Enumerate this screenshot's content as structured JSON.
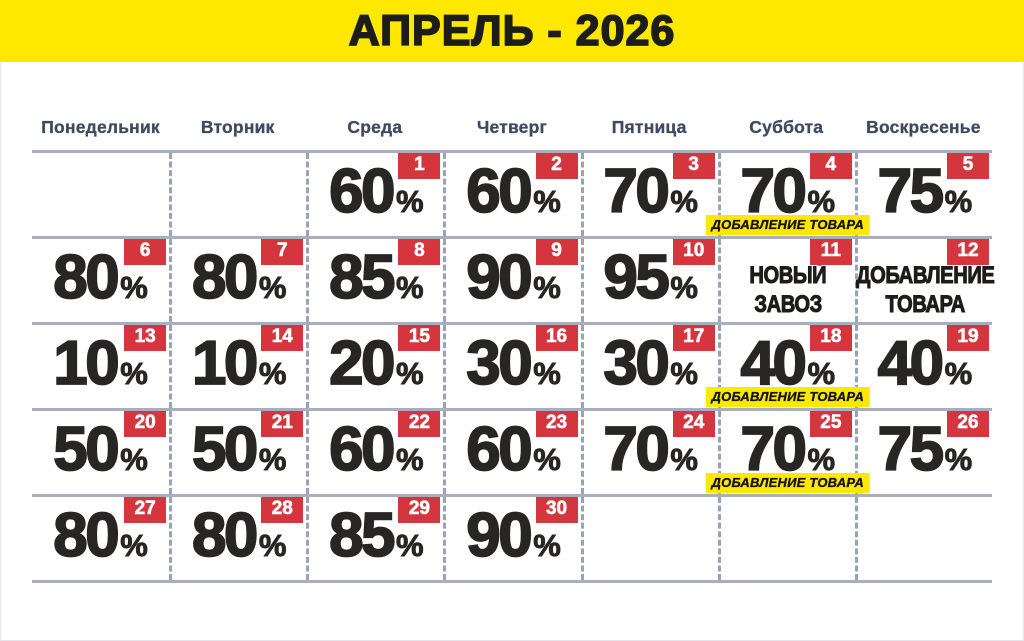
{
  "title": "АПРЕЛЬ - 2026",
  "percent_sign": "%",
  "weekdays": [
    "Понедельник",
    "Вторник",
    "Среда",
    "Четверг",
    "Пятница",
    "Суббота",
    "Воскресенье"
  ],
  "colors": {
    "banner_yellow": "#ffe800",
    "badge_red": "#d5353d",
    "weekday_text": "#3e4a64",
    "grid_solid_line": "#a8aebf",
    "grid_dashed_line": "#9aa2b6",
    "big_text": "#282624",
    "note_background": "#ffe800"
  },
  "calendar": {
    "rows": [
      [
        {},
        {},
        {
          "day": "1",
          "percent": "60"
        },
        {
          "day": "2",
          "percent": "60"
        },
        {
          "day": "3",
          "percent": "70"
        },
        {
          "day": "4",
          "percent": "70",
          "note": "ДОБАВЛЕНИЕ ТОВАРА"
        },
        {
          "day": "5",
          "percent": "75"
        }
      ],
      [
        {
          "day": "6",
          "percent": "80"
        },
        {
          "day": "7",
          "percent": "80"
        },
        {
          "day": "8",
          "percent": "85"
        },
        {
          "day": "9",
          "percent": "90"
        },
        {
          "day": "10",
          "percent": "95"
        },
        {
          "day": "11",
          "lines": [
            "НОВЫЙ",
            "ЗАВОЗ"
          ]
        },
        {
          "day": "12",
          "lines": [
            "ДОБАВЛЕНИЕ",
            "ТОВАРА"
          ]
        }
      ],
      [
        {
          "day": "13",
          "percent": "10"
        },
        {
          "day": "14",
          "percent": "10"
        },
        {
          "day": "15",
          "percent": "20"
        },
        {
          "day": "16",
          "percent": "30"
        },
        {
          "day": "17",
          "percent": "30"
        },
        {
          "day": "18",
          "percent": "40",
          "note": "ДОБАВЛЕНИЕ ТОВАРА"
        },
        {
          "day": "19",
          "percent": "40"
        }
      ],
      [
        {
          "day": "20",
          "percent": "50"
        },
        {
          "day": "21",
          "percent": "50"
        },
        {
          "day": "22",
          "percent": "60"
        },
        {
          "day": "23",
          "percent": "60"
        },
        {
          "day": "24",
          "percent": "70"
        },
        {
          "day": "25",
          "percent": "70",
          "note": "ДОБАВЛЕНИЕ ТОВАРА"
        },
        {
          "day": "26",
          "percent": "75"
        }
      ],
      [
        {
          "day": "27",
          "percent": "80"
        },
        {
          "day": "28",
          "percent": "80"
        },
        {
          "day": "29",
          "percent": "85"
        },
        {
          "day": "30",
          "percent": "90"
        },
        {},
        {},
        {}
      ]
    ]
  }
}
